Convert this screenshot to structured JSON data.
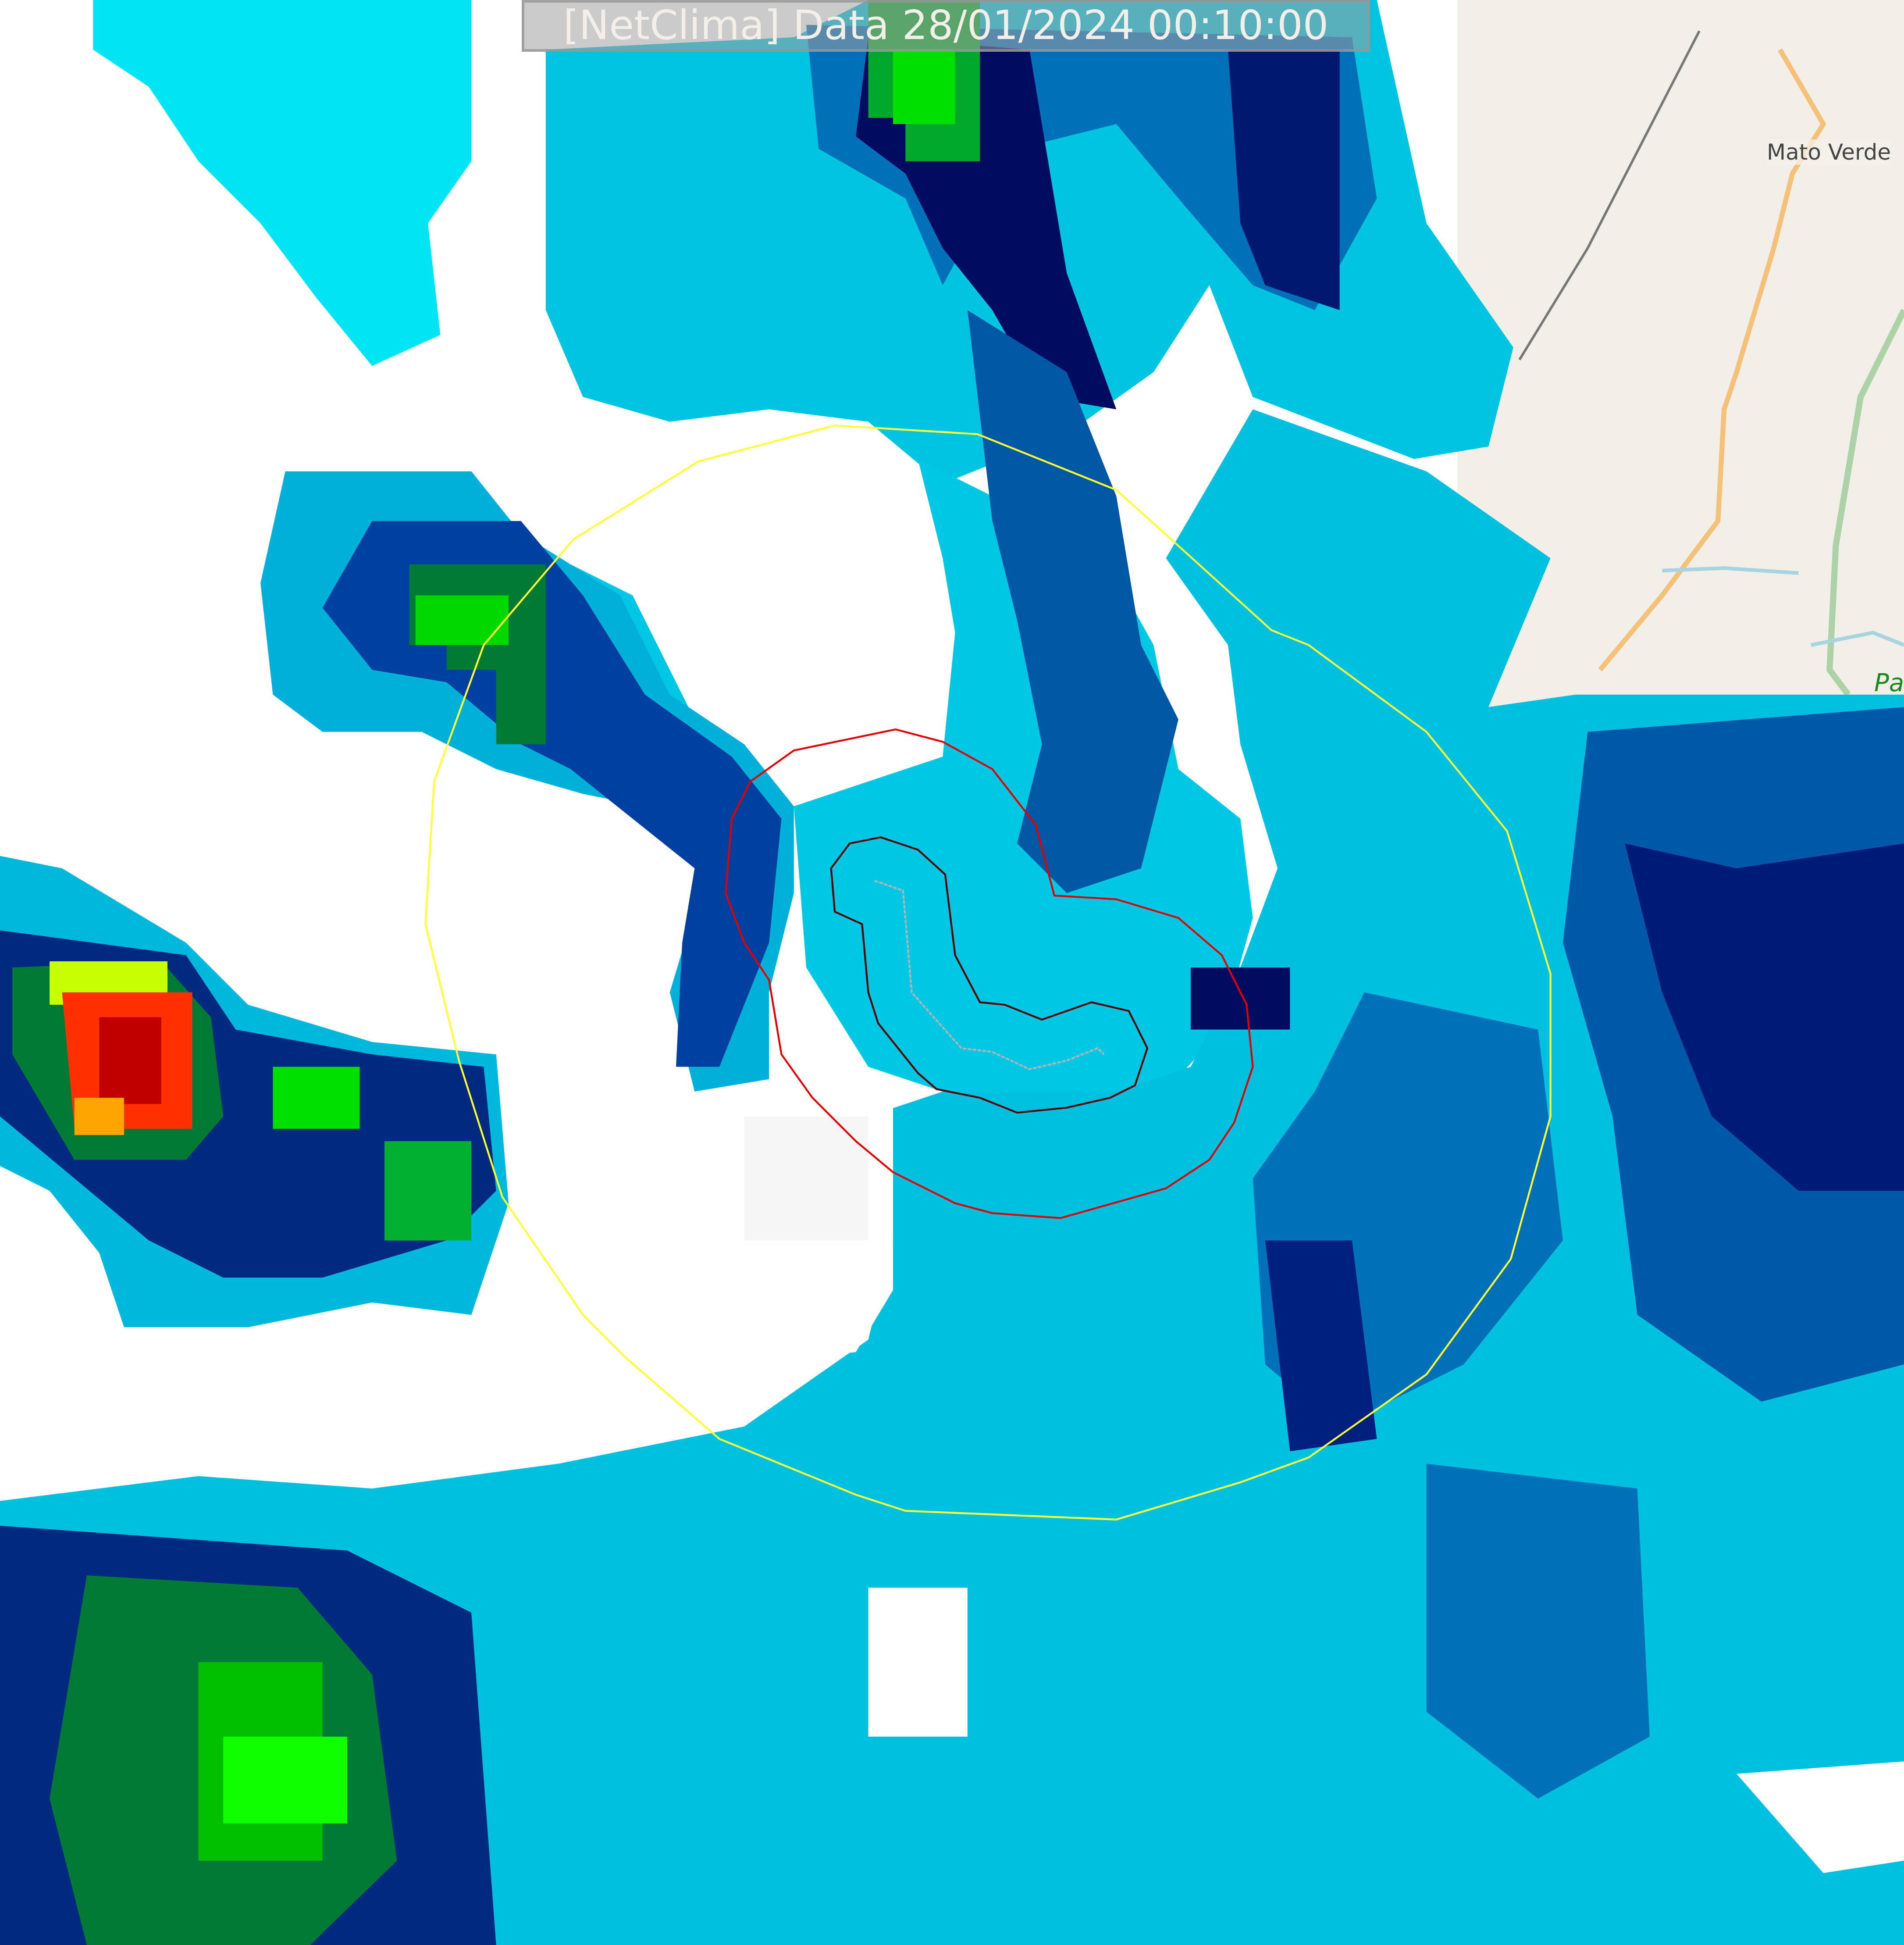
{
  "title": "[NetClima] Data 28/01/2024 00:10:00",
  "places": [
    {
      "name": "Mato Verde"
    },
    {
      "name": "Pa"
    }
  ],
  "colors": {
    "land": "#f2efe9",
    "road": "#f5c078",
    "river": "#a8d3e0",
    "border": "#aed2a8",
    "range_ring": "#ffff33",
    "contour_outer": "#e00000",
    "contour_inner": "#5a0000",
    "track": "#b4b4b4",
    "radar_scale": [
      "#00ffff",
      "#00d8ec",
      "#00b4d8",
      "#0090c8",
      "#0060a8",
      "#003a8c",
      "#000c60",
      "#04404c",
      "#007a2c",
      "#00c800",
      "#00ff00",
      "#ffff00",
      "#ffa500",
      "#ff2000",
      "#c00000"
    ]
  }
}
